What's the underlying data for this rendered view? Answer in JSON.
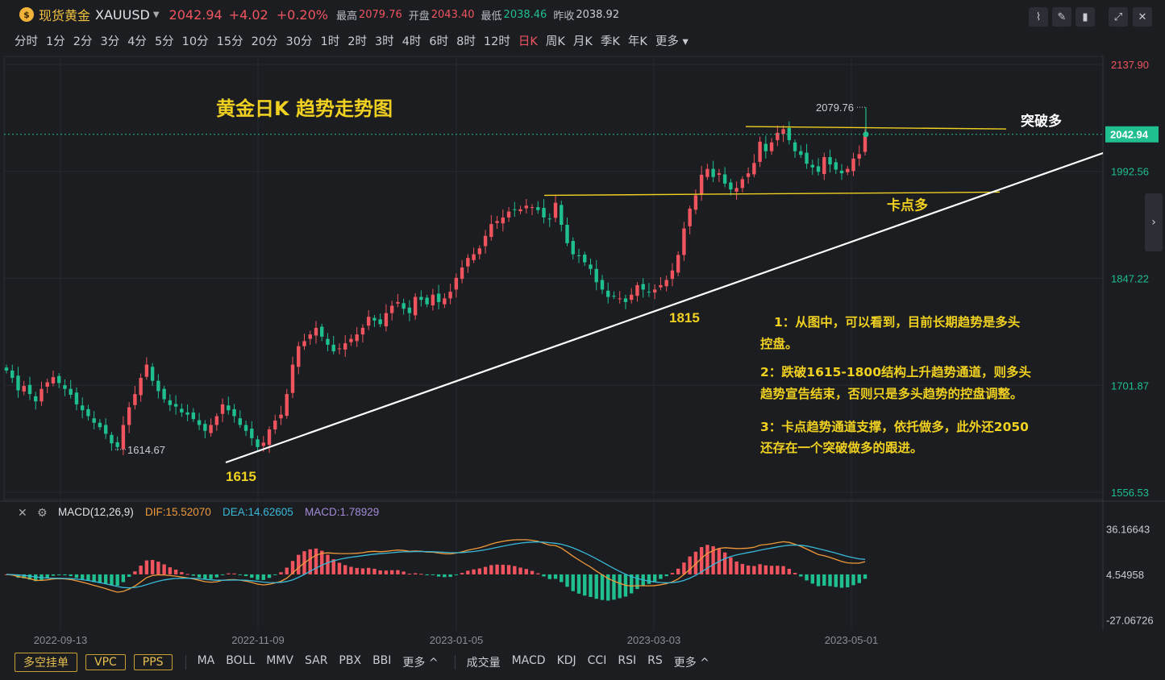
{
  "header": {
    "symbol_cn": "现货黄金",
    "symbol_code": "XAUUSD",
    "last_price": "2042.94",
    "change": "+4.02",
    "change_pct": "+0.20%",
    "high_label": "最高",
    "high_value": "2079.76",
    "open_label": "开盘",
    "open_value": "2043.40",
    "low_label": "最低",
    "low_value": "2038.46",
    "prev_label": "昨收",
    "prev_value": "2038.92"
  },
  "periods": [
    "分时",
    "1分",
    "2分",
    "3分",
    "4分",
    "5分",
    "10分",
    "15分",
    "20分",
    "30分",
    "1时",
    "2时",
    "3时",
    "4时",
    "6时",
    "8时",
    "12时",
    "日K",
    "周K",
    "月K",
    "季K",
    "年K",
    "更多"
  ],
  "active_period": "日K",
  "bottom": {
    "order_buttons": [
      "多空挂单",
      "VPC",
      "PPS"
    ],
    "main_indicators": [
      "MA",
      "BOLL",
      "MMV",
      "SAR",
      "PBX",
      "BBI",
      "更多 ^"
    ],
    "sub_indicators": [
      "成交量",
      "MACD",
      "KDJ",
      "CCI",
      "RSI",
      "RS",
      "更多 ^"
    ]
  },
  "macd_header": {
    "name": "MACD(12,26,9)",
    "dif": "DIF:15.52070",
    "dea": "DEA:14.62605",
    "macd": "MACD:1.78929"
  },
  "colors": {
    "bg": "#1b1d21",
    "up": "#f0545f",
    "down": "#1fbf8f",
    "annotation": "#f0d020",
    "dif": "#f09a3a",
    "dea": "#3ab8d8",
    "macd_label": "#a58bd8"
  },
  "chart_data": {
    "type": "candlestick",
    "title": "黄金日K 趋势走势图",
    "price_axis_ticks": [
      2137.9,
      1992.56,
      1847.22,
      1701.87,
      1556.53
    ],
    "current_price_tag": 2042.94,
    "ylim": [
      1556.53,
      2137.9
    ],
    "x_ticks": [
      "2022-09-13",
      "2022-11-09",
      "2023-01-05",
      "2023-03-03",
      "2023-05-01"
    ],
    "high_marker": {
      "label": "2079.76",
      "value": 2079.76
    },
    "low_marker": {
      "label": "1614.67",
      "value": 1614.67
    },
    "closes": [
      1722,
      1712,
      1695,
      1701,
      1690,
      1680,
      1697,
      1706,
      1713,
      1705,
      1697,
      1689,
      1676,
      1668,
      1660,
      1651,
      1645,
      1636,
      1623,
      1618,
      1648,
      1672,
      1690,
      1712,
      1730,
      1708,
      1694,
      1683,
      1675,
      1673,
      1665,
      1662,
      1656,
      1648,
      1640,
      1648,
      1660,
      1676,
      1668,
      1660,
      1648,
      1640,
      1630,
      1618,
      1624,
      1642,
      1654,
      1662,
      1690,
      1730,
      1755,
      1762,
      1771,
      1780,
      1768,
      1757,
      1748,
      1752,
      1759,
      1765,
      1771,
      1780,
      1795,
      1790,
      1785,
      1800,
      1810,
      1815,
      1806,
      1800,
      1822,
      1818,
      1812,
      1825,
      1815,
      1820,
      1829,
      1848,
      1862,
      1875,
      1880,
      1888,
      1905,
      1921,
      1925,
      1930,
      1938,
      1940,
      1941,
      1946,
      1944,
      1940,
      1930,
      1928,
      1950,
      1920,
      1895,
      1880,
      1878,
      1869,
      1860,
      1842,
      1832,
      1822,
      1823,
      1820,
      1815,
      1825,
      1838,
      1832,
      1828,
      1832,
      1838,
      1845,
      1858,
      1879,
      1915,
      1942,
      1960,
      1988,
      1996,
      1985,
      1990,
      1976,
      1968,
      1970,
      1982,
      1990,
      2004,
      2033,
      2020,
      2032,
      2045,
      2050,
      2035,
      2020,
      2015,
      2003,
      1998,
      1992,
      2012,
      2002,
      1995,
      1990,
      1996,
      2010,
      2016,
      2042.94
    ],
    "support_levels": [
      {
        "label": "卡点多",
        "value": 1960
      },
      {
        "label": "突破多",
        "value": 2048
      }
    ],
    "trendline": {
      "from_label": "1615",
      "from": 1615,
      "through_label": "1815",
      "through": 1815
    },
    "annotations": [
      "1：从图中，可以看到，目前长期趋势是多头",
      "控盘。",
      "2：跌破1615-1800结构上升趋势通道，则多头",
      "趋势宣告结束，否则只是多头趋势的控盘调整。",
      "3：卡点趋势通道支撑，依托做多，此外还2050",
      "还存在一个突破做多的跟进。"
    ],
    "macd": {
      "axis_ticks": [
        "36.16643",
        "4.54958",
        "-27.06726"
      ],
      "ylim": [
        -33,
        42
      ],
      "zero": 4.54958
    }
  }
}
